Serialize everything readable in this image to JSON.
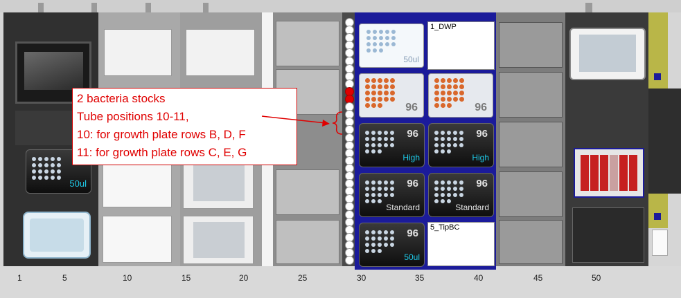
{
  "ruler": {
    "labels": [
      "1",
      "5",
      "10",
      "15",
      "20",
      "25",
      "30",
      "35",
      "40",
      "45",
      "50"
    ]
  },
  "annotation": {
    "line1": "2 bacteria stocks",
    "line2": "Tube positions 10-11,",
    "line3": "10: for growth plate rows B, D, F",
    "line4": "11: for growth plate rows C, E, G"
  },
  "carrier": {
    "labware": {
      "dwp_label": "1_DWP",
      "tipbc_label": "5_TipBC",
      "top_left_volume": "50ul",
      "plate_96_a": "96",
      "plate_96_b": "96",
      "tip_high_1": {
        "count": "96",
        "type": "High"
      },
      "tip_high_2": {
        "count": "96",
        "type": "High"
      },
      "tip_std_1": {
        "count": "96",
        "type": "Standard"
      },
      "tip_std_2": {
        "count": "96",
        "type": "Standard"
      },
      "tip_50_bottom": {
        "count": "96",
        "type": "50ul"
      }
    }
  },
  "left_tipbox": {
    "type": "50ul"
  },
  "tubes": {
    "active_positions": [
      10,
      11
    ],
    "total": 32
  },
  "colors": {
    "carrier_blue": "#1b1b9a",
    "active_tube": "#e00000",
    "annotation_red": "#e00000"
  }
}
